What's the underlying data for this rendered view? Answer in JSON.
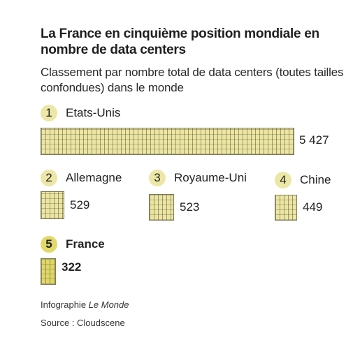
{
  "title": "La France en cinquième position mondiale en nombre de data centers",
  "subtitle": "Classement par nombre total de data centers (toutes tailles confondues) dans le monde",
  "credit_prefix": "Infographie ",
  "credit_publication": "Le Monde",
  "source": "Source : Cloudscene",
  "colors": {
    "bar_fill": "#ece6a2",
    "highlight_fill": "#e0d767",
    "bar_stroke": "#7c7a55"
  },
  "chart_data": {
    "type": "bar",
    "categories": [
      "Etats-Unis",
      "Allemagne",
      "Royaume-Uni",
      "Chine",
      "France"
    ],
    "ranks": [
      "1",
      "2",
      "3",
      "4",
      "5"
    ],
    "values": [
      5427,
      529,
      523,
      449,
      322
    ],
    "value_labels": [
      "5 427",
      "529",
      "523",
      "449",
      "322"
    ],
    "highlighted": "France",
    "encoding": "bar area proportional to value"
  }
}
